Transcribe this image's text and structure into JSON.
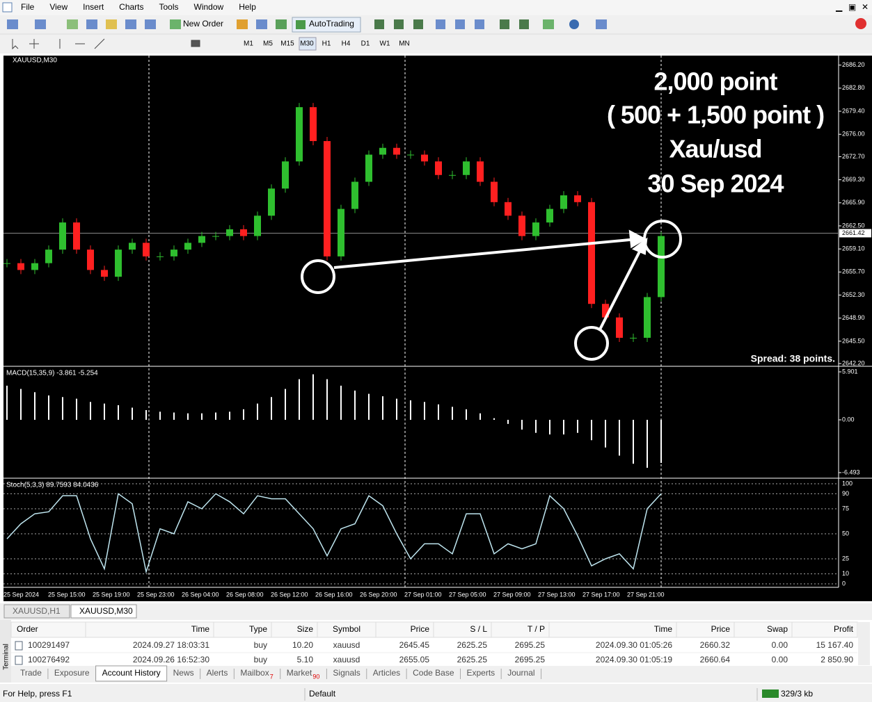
{
  "menu": [
    "File",
    "View",
    "Insert",
    "Charts",
    "Tools",
    "Window",
    "Help"
  ],
  "toolbar": {
    "new_order": "New Order",
    "auto_trading": "AutoTrading",
    "timeframes": [
      "M1",
      "M5",
      "M15",
      "M30",
      "H1",
      "H4",
      "D1",
      "W1",
      "MN"
    ]
  },
  "chart": {
    "symbol_label": "XAUUSD,M30",
    "spread": "Spread: 38 points.",
    "annotation": [
      "2,000 point",
      "( 500 + 1,500 point )",
      "Xau/usd",
      "30 Sep 2024"
    ],
    "ylim": [
      2641.8,
      2687.6
    ],
    "yticks": [
      {
        "value": 2686.2,
        "label": "2686.20"
      },
      {
        "value": 2682.8,
        "label": "2682.80"
      },
      {
        "value": 2679.4,
        "label": "2679.40"
      },
      {
        "value": 2676,
        "label": "2676.00"
      },
      {
        "value": 2672.7,
        "label": "2672.70"
      },
      {
        "value": 2669.3,
        "label": "2669.30"
      },
      {
        "value": 2665.9,
        "label": "2665.90"
      },
      {
        "value": 2662.5,
        "label": "2662.50"
      },
      {
        "value": 2659.1,
        "label": "2659.10"
      },
      {
        "value": 2655.7,
        "label": "2655.70"
      },
      {
        "value": 2652.3,
        "label": "2652.30"
      },
      {
        "value": 2648.9,
        "label": "2648.90"
      },
      {
        "value": 2645.5,
        "label": "2645.50"
      },
      {
        "value": 2642.2,
        "label": "2642.20"
      }
    ],
    "current_price": {
      "value": 2661.42,
      "label": "2661.42"
    },
    "time_labels": [
      "25 Sep 2024",
      "25 Sep 15:00",
      "25 Sep 19:00",
      "25 Sep 23:00",
      "26 Sep 04:00",
      "26 Sep 08:00",
      "26 Sep 12:00",
      "26 Sep 16:00",
      "26 Sep 20:00",
      "27 Sep 01:00",
      "27 Sep 05:00",
      "27 Sep 09:00",
      "27 Sep 13:00",
      "27 Sep 17:00",
      "27 Sep 21:00"
    ],
    "closes": [
      2657,
      2656,
      2657,
      2659,
      2663,
      2659,
      2656,
      2655,
      2659,
      2660,
      2658,
      2658,
      2659,
      2660,
      2661,
      2661,
      2662,
      2661,
      2664,
      2668,
      2672,
      2680,
      2675,
      2658,
      2665,
      2669,
      2673,
      2674,
      2673,
      2673,
      2672,
      2670,
      2670,
      2672,
      2669,
      2666,
      2664,
      2661,
      2663,
      2665,
      2667,
      2666,
      2651,
      2649,
      2646,
      2646,
      2652,
      2661
    ]
  },
  "macd": {
    "label": "MACD(15,35,9) -3.861 -5.254",
    "ylim": [
      -6.493,
      5.901
    ],
    "yticks": [
      5.901,
      {
        "value": 0,
        "label": "0.00"
      },
      -6.493
    ],
    "values": [
      4.2,
      3.8,
      3.4,
      3.0,
      2.8,
      2.6,
      2.2,
      2.0,
      1.8,
      1.5,
      1.2,
      1.0,
      0.9,
      0.8,
      0.8,
      0.9,
      1.0,
      1.3,
      2.0,
      2.8,
      3.8,
      5.0,
      5.6,
      5.0,
      4.2,
      3.6,
      3.2,
      2.9,
      2.6,
      2.4,
      2.2,
      1.9,
      1.6,
      1.3,
      0.8,
      0.2,
      -0.5,
      -1.2,
      -1.6,
      -1.8,
      -1.8,
      -1.6,
      -2.5,
      -3.4,
      -4.4,
      -5.4,
      -5.9,
      -5.3
    ]
  },
  "stoch": {
    "label": "Stoch(5,3,3) 89.7593 84.0436",
    "ylim": [
      0,
      100
    ],
    "yticks": [
      100,
      90,
      75,
      50,
      25,
      10,
      0
    ],
    "values": [
      45,
      60,
      70,
      72,
      88,
      88,
      45,
      15,
      90,
      80,
      12,
      55,
      50,
      82,
      75,
      90,
      82,
      70,
      88,
      85,
      85,
      70,
      55,
      28,
      55,
      60,
      88,
      78,
      50,
      25,
      40,
      40,
      30,
      70,
      70,
      30,
      40,
      35,
      40,
      88,
      75,
      48,
      18,
      25,
      30,
      15,
      75,
      90
    ]
  },
  "chart_tabs": [
    "XAUUSD,H1",
    "XAUUSD,M30"
  ],
  "table": {
    "headers": [
      "Order",
      "Time",
      "Type",
      "Size",
      "Symbol",
      "Price",
      "S / L",
      "T / P",
      "Time",
      "Price",
      "Swap",
      "Profit"
    ],
    "rows": [
      [
        "100291497",
        "2024.09.27 18:03:31",
        "buy",
        "10.20",
        "xauusd",
        "2645.45",
        "2625.25",
        "2695.25",
        "2024.09.30 01:05:26",
        "2660.32",
        "0.00",
        "15 167.40"
      ],
      [
        "100276492",
        "2024.09.26 16:52:30",
        "buy",
        "5.10",
        "xauusd",
        "2655.05",
        "2625.25",
        "2695.25",
        "2024.09.30 01:05:19",
        "2660.64",
        "0.00",
        "2 850.90"
      ]
    ]
  },
  "terminal_label": "Terminal",
  "terminal_tabs": [
    {
      "label": "Trade"
    },
    {
      "label": "Exposure"
    },
    {
      "label": "Account History"
    },
    {
      "label": "News"
    },
    {
      "label": "Alerts"
    },
    {
      "label": "Mailbox",
      "badge": "7"
    },
    {
      "label": "Market",
      "badge": "90"
    },
    {
      "label": "Signals"
    },
    {
      "label": "Articles"
    },
    {
      "label": "Code Base"
    },
    {
      "label": "Experts"
    },
    {
      "label": "Journal"
    }
  ],
  "status": {
    "help": "For Help, press F1",
    "profile": "Default",
    "traffic": "329/3 kb"
  }
}
